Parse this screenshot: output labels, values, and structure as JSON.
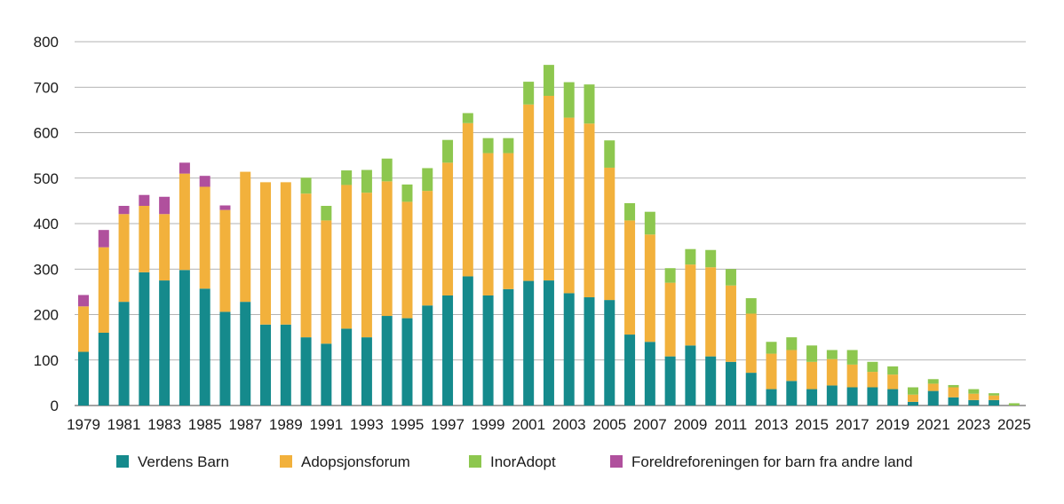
{
  "chart_data": {
    "type": "bar",
    "stacked": true,
    "ylim": [
      0,
      800
    ],
    "y_ticks": [
      "0",
      "100",
      "200",
      "300",
      "400",
      "500",
      "600",
      "700",
      "800"
    ],
    "grid": true,
    "legend_position": "bottom",
    "x": [
      1979,
      1980,
      1981,
      1982,
      1983,
      1984,
      1985,
      1986,
      1987,
      1988,
      1989,
      1990,
      1991,
      1992,
      1993,
      1994,
      1995,
      1996,
      1997,
      1998,
      1999,
      2000,
      2001,
      2002,
      2003,
      2004,
      2005,
      2006,
      2007,
      2008,
      2009,
      2010,
      2011,
      2012,
      2013,
      2014,
      2015,
      2016,
      2017,
      2018,
      2019,
      2020,
      2021,
      2022,
      2023,
      2024,
      2025
    ],
    "x_tick_labels": [
      "1979",
      "1981",
      "1983",
      "1985",
      "1987",
      "1989",
      "1991",
      "1993",
      "1995",
      "1997",
      "1999",
      "2001",
      "2003",
      "2005",
      "2007",
      "2009",
      "2011",
      "2013",
      "2015",
      "2017",
      "2019",
      "2021",
      "2023",
      "2025"
    ],
    "series": [
      {
        "name": "Verdens Barn",
        "color": "#158a8c",
        "values": [
          118,
          160,
          228,
          293,
          275,
          298,
          257,
          206,
          228,
          178,
          178,
          150,
          136,
          169,
          150,
          197,
          192,
          220,
          242,
          284,
          242,
          256,
          274,
          275,
          247,
          238,
          232,
          156,
          140,
          108,
          132,
          108,
          96,
          72,
          36,
          54,
          36,
          44,
          40,
          40,
          36,
          8,
          32,
          18,
          12,
          12,
          0
        ]
      },
      {
        "name": "Adopsjonsforum",
        "color": "#f2b13c",
        "values": [
          100,
          188,
          193,
          146,
          146,
          212,
          224,
          224,
          286,
          313,
          313,
          316,
          271,
          316,
          318,
          296,
          256,
          252,
          292,
          337,
          313,
          299,
          388,
          406,
          386,
          382,
          291,
          251,
          236,
          162,
          178,
          196,
          168,
          130,
          78,
          68,
          60,
          58,
          50,
          34,
          32,
          16,
          16,
          22,
          14,
          10,
          0
        ]
      },
      {
        "name": "InorAdopt",
        "color": "#8dc74f",
        "values": [
          0,
          0,
          0,
          0,
          0,
          0,
          0,
          0,
          0,
          0,
          0,
          35,
          32,
          32,
          50,
          50,
          38,
          50,
          50,
          22,
          33,
          33,
          50,
          68,
          78,
          86,
          60,
          38,
          50,
          32,
          34,
          38,
          36,
          34,
          26,
          28,
          36,
          20,
          32,
          22,
          18,
          16,
          10,
          5,
          10,
          5,
          5
        ]
      },
      {
        "name": "Foreldreforeningen for barn fra andre land",
        "color": "#b0509d",
        "values": [
          25,
          38,
          18,
          24,
          38,
          24,
          24,
          10,
          0,
          0,
          0,
          0,
          0,
          0,
          0,
          0,
          0,
          0,
          0,
          0,
          0,
          0,
          0,
          0,
          0,
          0,
          0,
          0,
          0,
          0,
          0,
          0,
          0,
          0,
          0,
          0,
          0,
          0,
          0,
          0,
          0,
          0,
          0,
          0,
          0,
          0,
          0
        ]
      }
    ]
  }
}
